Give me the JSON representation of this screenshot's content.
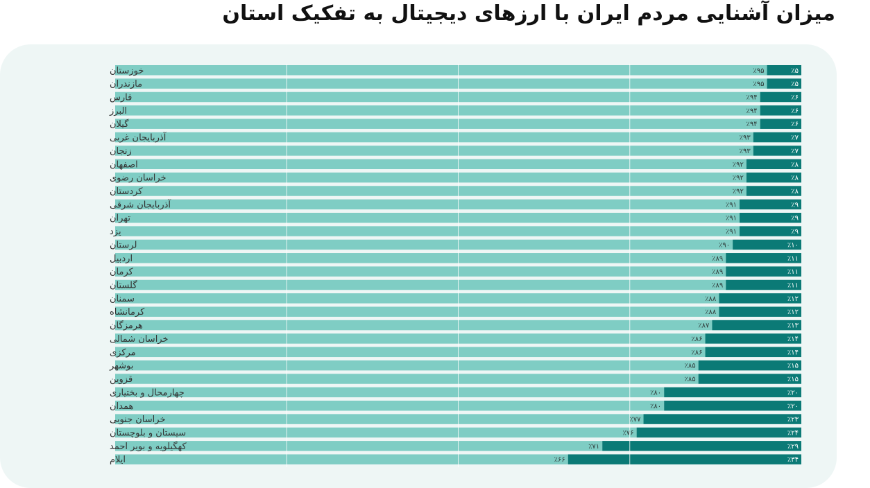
{
  "title": "میزان آشنایی مردم ایران با ارزهای دیجیتال به تفکیک استان",
  "colors": {
    "background": "#eef6f5",
    "aware": "#0b7a76",
    "unaware": "#7fcdc4",
    "grid": "#ffffff"
  },
  "chart_data": {
    "type": "bar",
    "orientation": "horizontal",
    "stacked": true,
    "percent": true,
    "xlim": [
      0,
      100
    ],
    "grid": true,
    "categories": [
      "خوزستان",
      "مازندران",
      "فارس",
      "البرز",
      "گیلان",
      "آذربایجان غربی",
      "زنجان",
      "اصفهان",
      "خراسان رضوی",
      "کردستان",
      "آذربایجان شرقی",
      "تهران",
      "یزد",
      "لرستان",
      "اردبیل",
      "کرمان",
      "گلستان",
      "سمنان",
      "کرمانشاه",
      "هرمزگان",
      "خراسان شمالی",
      "مرکزی",
      "بوشهر",
      "قزوین",
      "چهارمحال و بختیاری",
      "همدان",
      "خراسان جنوبی",
      "سیستان و بلوچستان",
      "کهگیلویه و بویر احمد",
      "ایلام"
    ],
    "series": [
      {
        "values": [
          5,
          5,
          6,
          6,
          6,
          7,
          7,
          8,
          8,
          8,
          9,
          9,
          9,
          10,
          11,
          11,
          11,
          12,
          12,
          13,
          14,
          14,
          15,
          15,
          20,
          20,
          23,
          24,
          29,
          34
        ],
        "labels": [
          "٪۵",
          "٪۵",
          "٪۶",
          "٪۶",
          "٪۶",
          "٪۷",
          "٪۷",
          "٪۸",
          "٪۸",
          "٪۸",
          "٪۹",
          "٪۹",
          "٪۹",
          "٪۱۰",
          "٪۱۱",
          "٪۱۱",
          "٪۱۱",
          "٪۱۲",
          "٪۱۲",
          "٪۱۳",
          "٪۱۴",
          "٪۱۴",
          "٪۱۵",
          "٪۱۵",
          "٪۲۰",
          "٪۲۰",
          "٪۲۳",
          "٪۲۴",
          "٪۲۹",
          "٪۳۴"
        ]
      },
      {
        "values": [
          95,
          95,
          94,
          94,
          94,
          93,
          93,
          92,
          92,
          92,
          91,
          91,
          91,
          90,
          89,
          89,
          89,
          88,
          88,
          87,
          86,
          86,
          85,
          85,
          80,
          80,
          77,
          76,
          71,
          66
        ],
        "labels": [
          "٪۹۵",
          "٪۹۵",
          "٪۹۴",
          "٪۹۴",
          "٪۹۴",
          "٪۹۳",
          "٪۹۳",
          "٪۹۲",
          "٪۹۲",
          "٪۹۲",
          "٪۹۱",
          "٪۹۱",
          "٪۹۱",
          "٪۹۰",
          "٪۸۹",
          "٪۸۹",
          "٪۸۹",
          "٪۸۸",
          "٪۸۸",
          "٪۸۷",
          "٪۸۶",
          "٪۸۶",
          "٪۸۵",
          "٪۸۵",
          "٪۸۰",
          "٪۸۰",
          "٪۷۷",
          "٪۷۶",
          "٪۷۱",
          "٪۶۶"
        ]
      }
    ]
  }
}
